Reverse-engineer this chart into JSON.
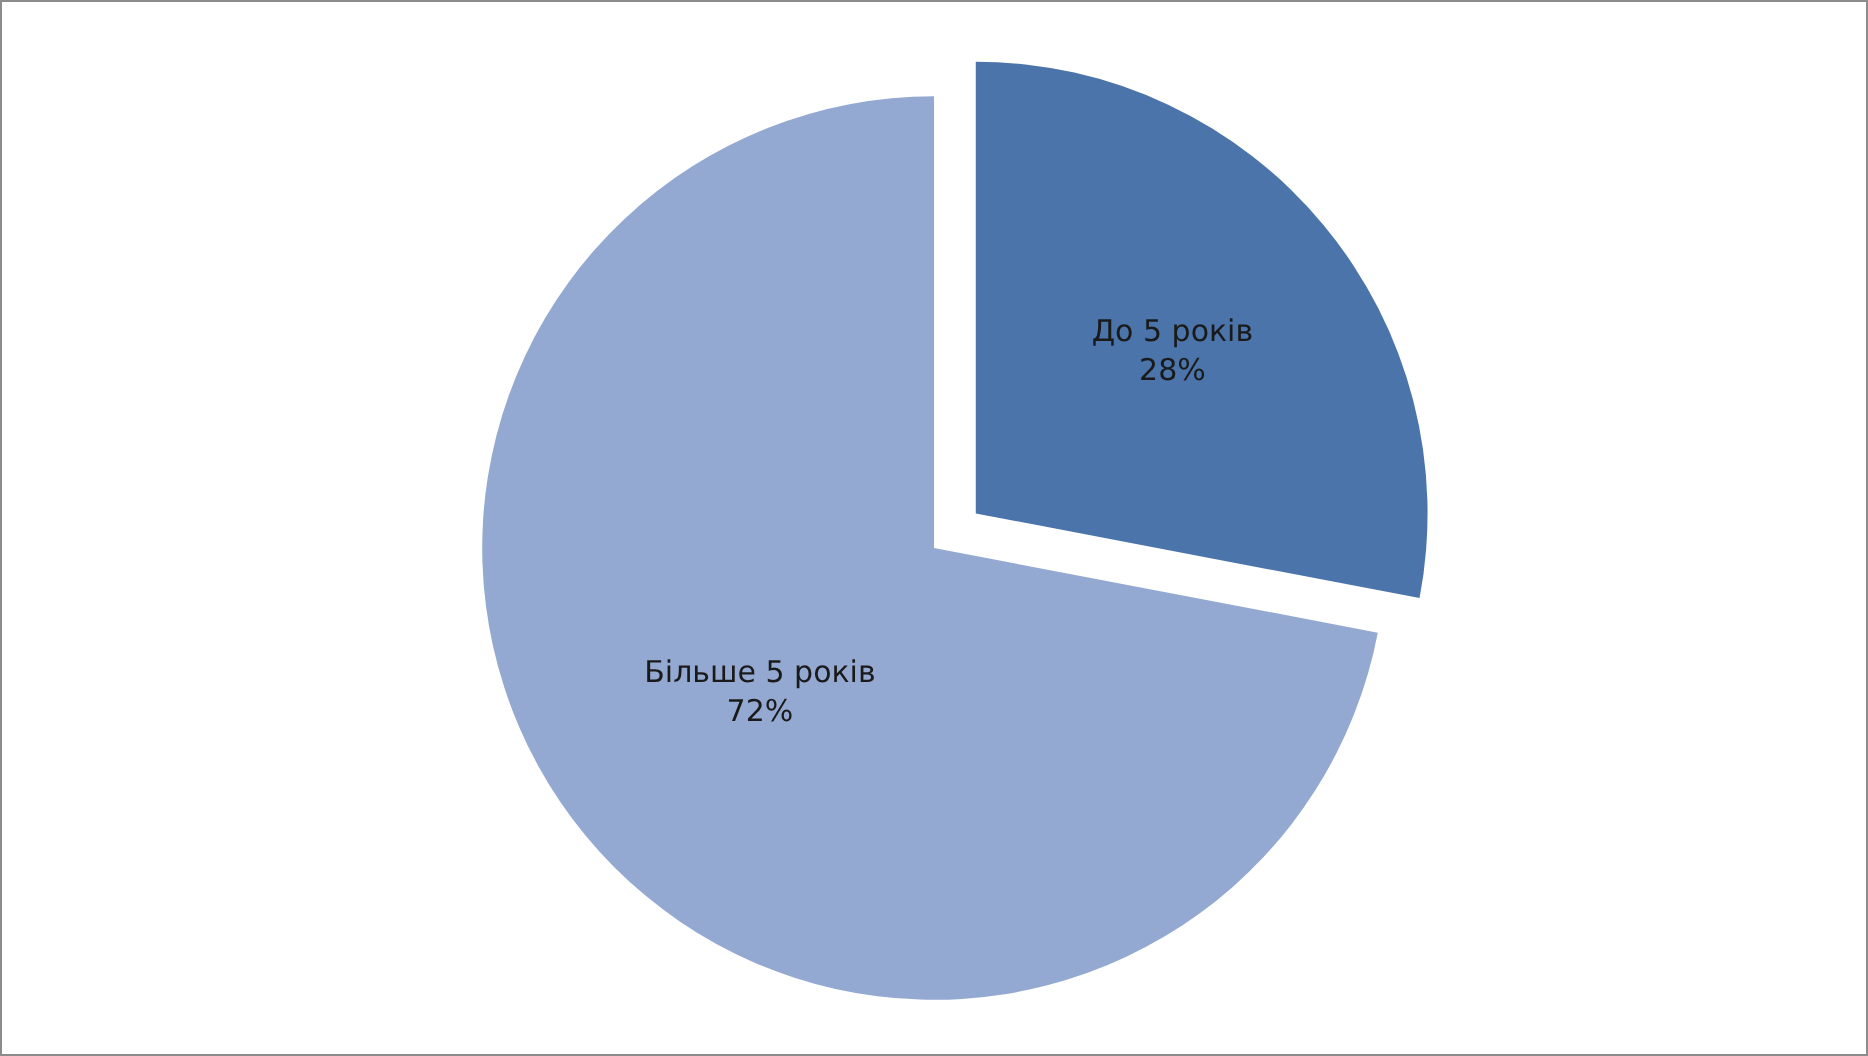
{
  "chart_data": {
    "type": "pie",
    "categories": [
      "До 5 років",
      "Більше 5 років"
    ],
    "values": [
      28,
      72
    ],
    "colors": [
      "#4a74aa",
      "#94a9d1"
    ],
    "value_labels": [
      "28%",
      "72%"
    ],
    "legend": false
  }
}
